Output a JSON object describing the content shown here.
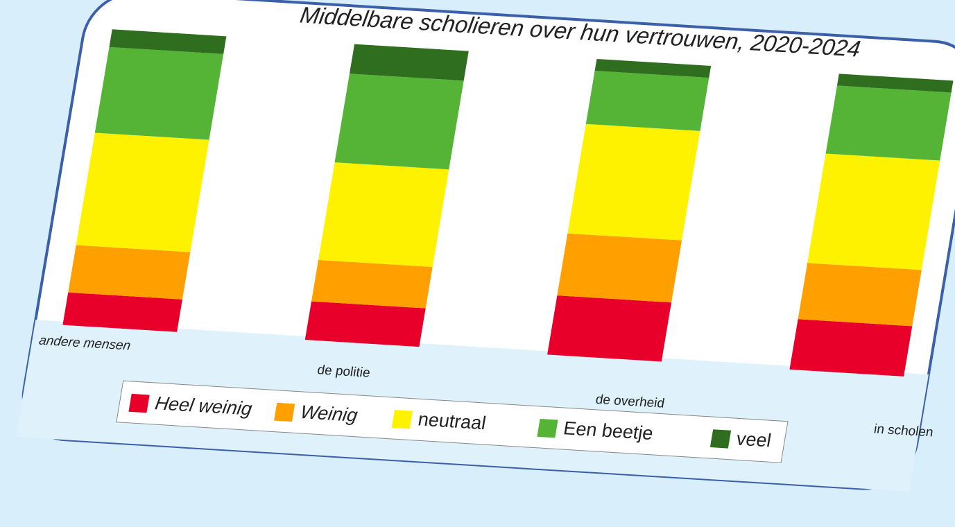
{
  "chart_data": {
    "type": "stacked_bar",
    "title": "Middelbare scholieren over hun vertrouwen, 2020-2024",
    "categories": [
      "andere mensen",
      "de politie",
      "de overheid",
      "in scholen"
    ],
    "series": [
      {
        "name": "Heel weinig",
        "color": "#e8002a",
        "values": [
          11,
          13,
          20,
          17
        ]
      },
      {
        "name": "Weinig",
        "color": "#ffa000",
        "values": [
          16,
          14,
          21,
          19
        ]
      },
      {
        "name": "neutraal",
        "color": "#fff200",
        "values": [
          38,
          33,
          37,
          37
        ]
      },
      {
        "name": "Een beetje",
        "color": "#55b436",
        "values": [
          29,
          30,
          18,
          23
        ]
      },
      {
        "name": "veel",
        "color": "#2e6e1e",
        "values": [
          6,
          10,
          4,
          4
        ]
      }
    ],
    "legend": "bottom"
  }
}
